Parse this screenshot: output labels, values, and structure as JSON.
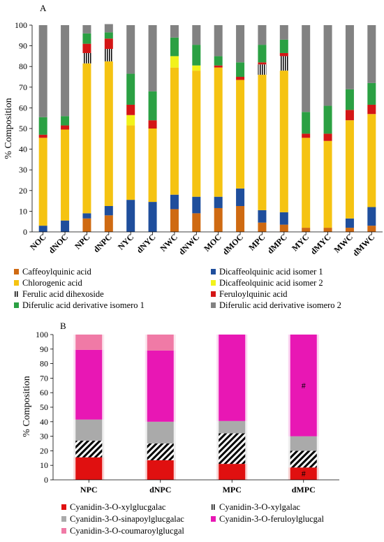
{
  "chart_data": [
    {
      "panel": "A",
      "type": "bar",
      "stacked": true,
      "ylabel": "% Composition",
      "ylim": [
        0,
        100
      ],
      "yticks": [
        0,
        10,
        20,
        30,
        40,
        50,
        60,
        70,
        80,
        90,
        100
      ],
      "grid": false,
      "legend_position": "bottom",
      "categories": [
        "NOC",
        "dNOC",
        "NPC",
        "dNPC",
        "NYC",
        "dNYC",
        "NWC",
        "dNWC",
        "MOC",
        "dMOC",
        "MPC",
        "dMPC",
        "MYC",
        "dMYC",
        "MWC",
        "dMWC"
      ],
      "series": [
        {
          "name": "Caffeoylquinic acid",
          "color": "#cf6a12",
          "values": [
            0,
            0,
            6.5,
            8,
            0,
            0,
            11,
            9,
            11.5,
            12.5,
            4.5,
            3.5,
            2,
            2,
            2,
            3
          ]
        },
        {
          "name": "Dicaffeolquinic acid isomer 1",
          "color": "#1f4e9c",
          "values": [
            3,
            5.5,
            2.5,
            4.5,
            15.5,
            14.5,
            7,
            8,
            5.5,
            8.5,
            6,
            6,
            0,
            0,
            4.5,
            9
          ]
        },
        {
          "name": "Chlorogenic acid",
          "color": "#f5c312",
          "values": [
            42.5,
            44,
            72.5,
            70,
            36,
            35.5,
            61.5,
            61,
            62.5,
            52.5,
            65.5,
            68.5,
            43.5,
            42,
            47.5,
            45
          ]
        },
        {
          "name": "Dicaffeolquinic acid isomer 2",
          "color": "#f2f21b",
          "values": [
            0,
            0,
            0,
            0,
            5,
            0,
            5.5,
            2.5,
            0,
            0,
            0,
            0,
            0,
            0,
            0,
            0
          ]
        },
        {
          "name": "Ferulic acid dihexoside",
          "color": "#000000",
          "pattern": "stripes",
          "values": [
            0,
            0,
            5,
            6,
            0,
            0,
            0,
            0,
            0,
            0,
            5,
            7,
            0,
            0,
            0,
            0
          ]
        },
        {
          "name": "Feruloylquinic acid",
          "color": "#d41616",
          "values": [
            1.5,
            2,
            4.5,
            5,
            5,
            4,
            0,
            0,
            1,
            1.5,
            1,
            1.5,
            2,
            3.5,
            5,
            4.5
          ]
        },
        {
          "name": "Diferulic acid derivative isomero 1",
          "color": "#2ba043",
          "values": [
            8.5,
            4.5,
            5,
            3,
            15,
            14,
            9,
            10,
            4.5,
            7,
            8.5,
            6.5,
            10.5,
            13.5,
            10,
            10.5
          ]
        },
        {
          "name": "Diferulic acid derivative isomero 2",
          "color": "#828282",
          "values": [
            44.5,
            44,
            4,
            4,
            23.5,
            32,
            6,
            9.5,
            15,
            18,
            9.5,
            7,
            42,
            39,
            31,
            28
          ]
        }
      ]
    },
    {
      "panel": "B",
      "type": "bar",
      "stacked": true,
      "ylabel": "% Composition",
      "ylim": [
        0,
        100
      ],
      "yticks": [
        0,
        10,
        20,
        30,
        40,
        50,
        60,
        70,
        80,
        90,
        100
      ],
      "grid": false,
      "legend_position": "bottom",
      "categories": [
        "NPC",
        "dNPC",
        "MPC",
        "dMPC"
      ],
      "series": [
        {
          "name": "Cyanidin-3-O-xylglucgalac",
          "color": "#e01010",
          "values": [
            15.5,
            13.5,
            11,
            8.5
          ]
        },
        {
          "name": "Cyanidin-3-O-xylgalac",
          "color": "#000000",
          "pattern": "stripes",
          "values": [
            11.5,
            11.5,
            21,
            11.5
          ]
        },
        {
          "name": "Cyanidin-3-O-sinapoylglucgalac",
          "color": "#aaaaaa",
          "values": [
            14.5,
            15,
            8.5,
            10
          ]
        },
        {
          "name": "Cyanidin-3-O-feruloylglucgal",
          "color": "#e817b4",
          "values": [
            48,
            49,
            59.5,
            70
          ]
        },
        {
          "name": "Cyanidin-3-O-coumaroylglucgal",
          "color": "#f07aa6",
          "values": [
            10.5,
            11,
            0,
            0
          ]
        }
      ],
      "annotations": [
        {
          "category": "dMPC",
          "series": "Cyanidin-3-O-xylglucgalac",
          "text": "#"
        },
        {
          "category": "dMPC",
          "series": "Cyanidin-3-O-feruloylglucgal",
          "text": "#"
        }
      ]
    }
  ],
  "panel_labels": {
    "a": "A",
    "b": "B"
  }
}
